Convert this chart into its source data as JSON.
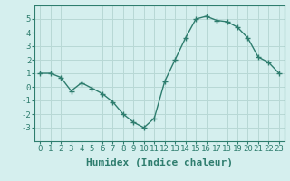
{
  "x": [
    0,
    1,
    2,
    3,
    4,
    5,
    6,
    7,
    8,
    9,
    10,
    11,
    12,
    13,
    14,
    15,
    16,
    17,
    18,
    19,
    20,
    21,
    22,
    23
  ],
  "y": [
    1.0,
    1.0,
    0.7,
    -0.3,
    0.3,
    -0.1,
    -0.5,
    -1.1,
    -2.0,
    -2.6,
    -3.0,
    -2.3,
    0.4,
    2.0,
    3.6,
    5.0,
    5.2,
    4.9,
    4.8,
    4.4,
    3.6,
    2.2,
    1.8,
    1.0
  ],
  "line_color": "#2e7d6e",
  "marker": "+",
  "marker_size": 4,
  "bg_color": "#d5efee",
  "grid_color": "#b8d8d5",
  "xlabel": "Humidex (Indice chaleur)",
  "ylim": [
    -4,
    6
  ],
  "xlim": [
    -0.5,
    23.5
  ],
  "yticks": [
    -3,
    -2,
    -1,
    0,
    1,
    2,
    3,
    4,
    5
  ],
  "xticks": [
    0,
    1,
    2,
    3,
    4,
    5,
    6,
    7,
    8,
    9,
    10,
    11,
    12,
    13,
    14,
    15,
    16,
    17,
    18,
    19,
    20,
    21,
    22,
    23
  ],
  "tick_label_fontsize": 6.5,
  "xlabel_fontsize": 8,
  "line_width": 1.0,
  "tick_color": "#2e7d6e",
  "spine_color": "#2e7d6e"
}
